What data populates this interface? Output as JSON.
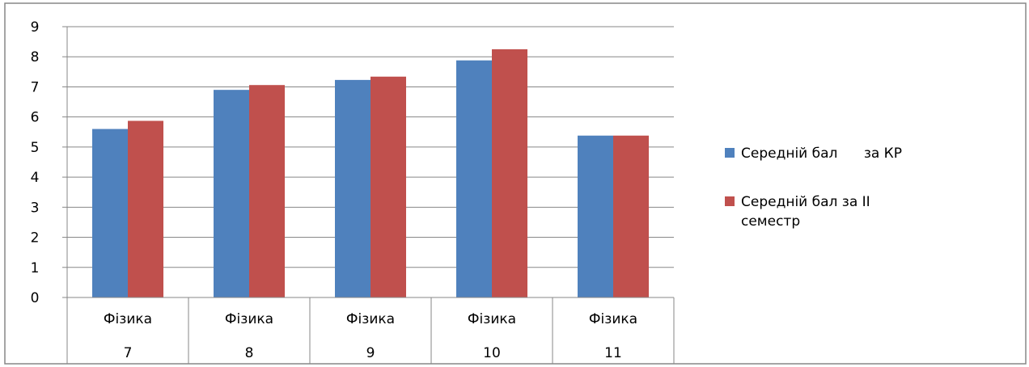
{
  "chart_data": {
    "type": "bar",
    "categories": [
      [
        "Фізика",
        "7"
      ],
      [
        "Фізика",
        "8"
      ],
      [
        "Фізика",
        "9"
      ],
      [
        "Фізика",
        "10"
      ],
      [
        "Фізика",
        "11"
      ]
    ],
    "series": [
      {
        "name": "Середній бал      за КР",
        "color": "#4F81BD",
        "values": [
          5.6,
          6.9,
          7.23,
          7.88,
          5.38
        ]
      },
      {
        "name": "Середній бал за II семестр",
        "name_lines": [
          "Середній бал за II",
          "семестр"
        ],
        "color": "#C0504D",
        "values": [
          5.87,
          7.06,
          7.34,
          8.25,
          5.38
        ]
      }
    ],
    "ylim": [
      0,
      9
    ],
    "yticks": [
      0,
      1,
      2,
      3,
      4,
      5,
      6,
      7,
      8,
      9
    ],
    "grid": true,
    "legend_position": "right",
    "title": "",
    "xlabel": "",
    "ylabel": ""
  }
}
